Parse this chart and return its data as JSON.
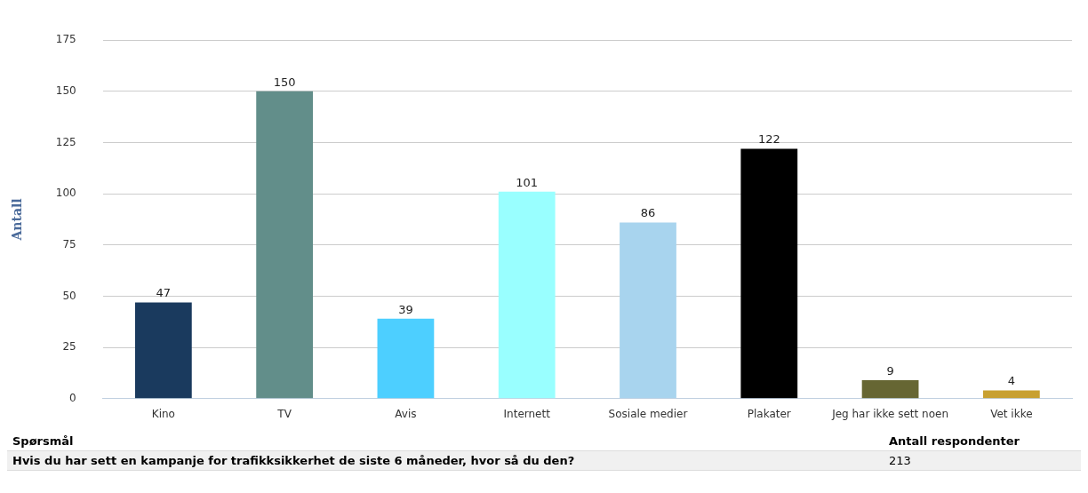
{
  "chart_data": {
    "type": "bar",
    "ylabel": "Antall",
    "categories": [
      "Kino",
      "TV",
      "Avis",
      "Internett",
      "Sosiale medier",
      "Plakater",
      "Jeg har ikke sett noen",
      "Vet ikke"
    ],
    "values": [
      47,
      150,
      39,
      101,
      86,
      122,
      9,
      4
    ],
    "colors": [
      "#1a3a5e",
      "#628e8a",
      "#4dcfff",
      "#99ffff",
      "#a8d4ee",
      "#000000",
      "#666633",
      "#c8a030"
    ],
    "ylim": [
      0,
      175
    ],
    "yticks": [
      0,
      25,
      50,
      75,
      100,
      125,
      150,
      175
    ],
    "grid": "y",
    "data_labels": true,
    "legend": false,
    "annotations": [
      "Spørsmål",
      "Antall respondenter",
      "Hvis du har sett en kampanje for trafikksikkerhet de siste 6 måneder, hvor så du den?",
      "213"
    ]
  }
}
